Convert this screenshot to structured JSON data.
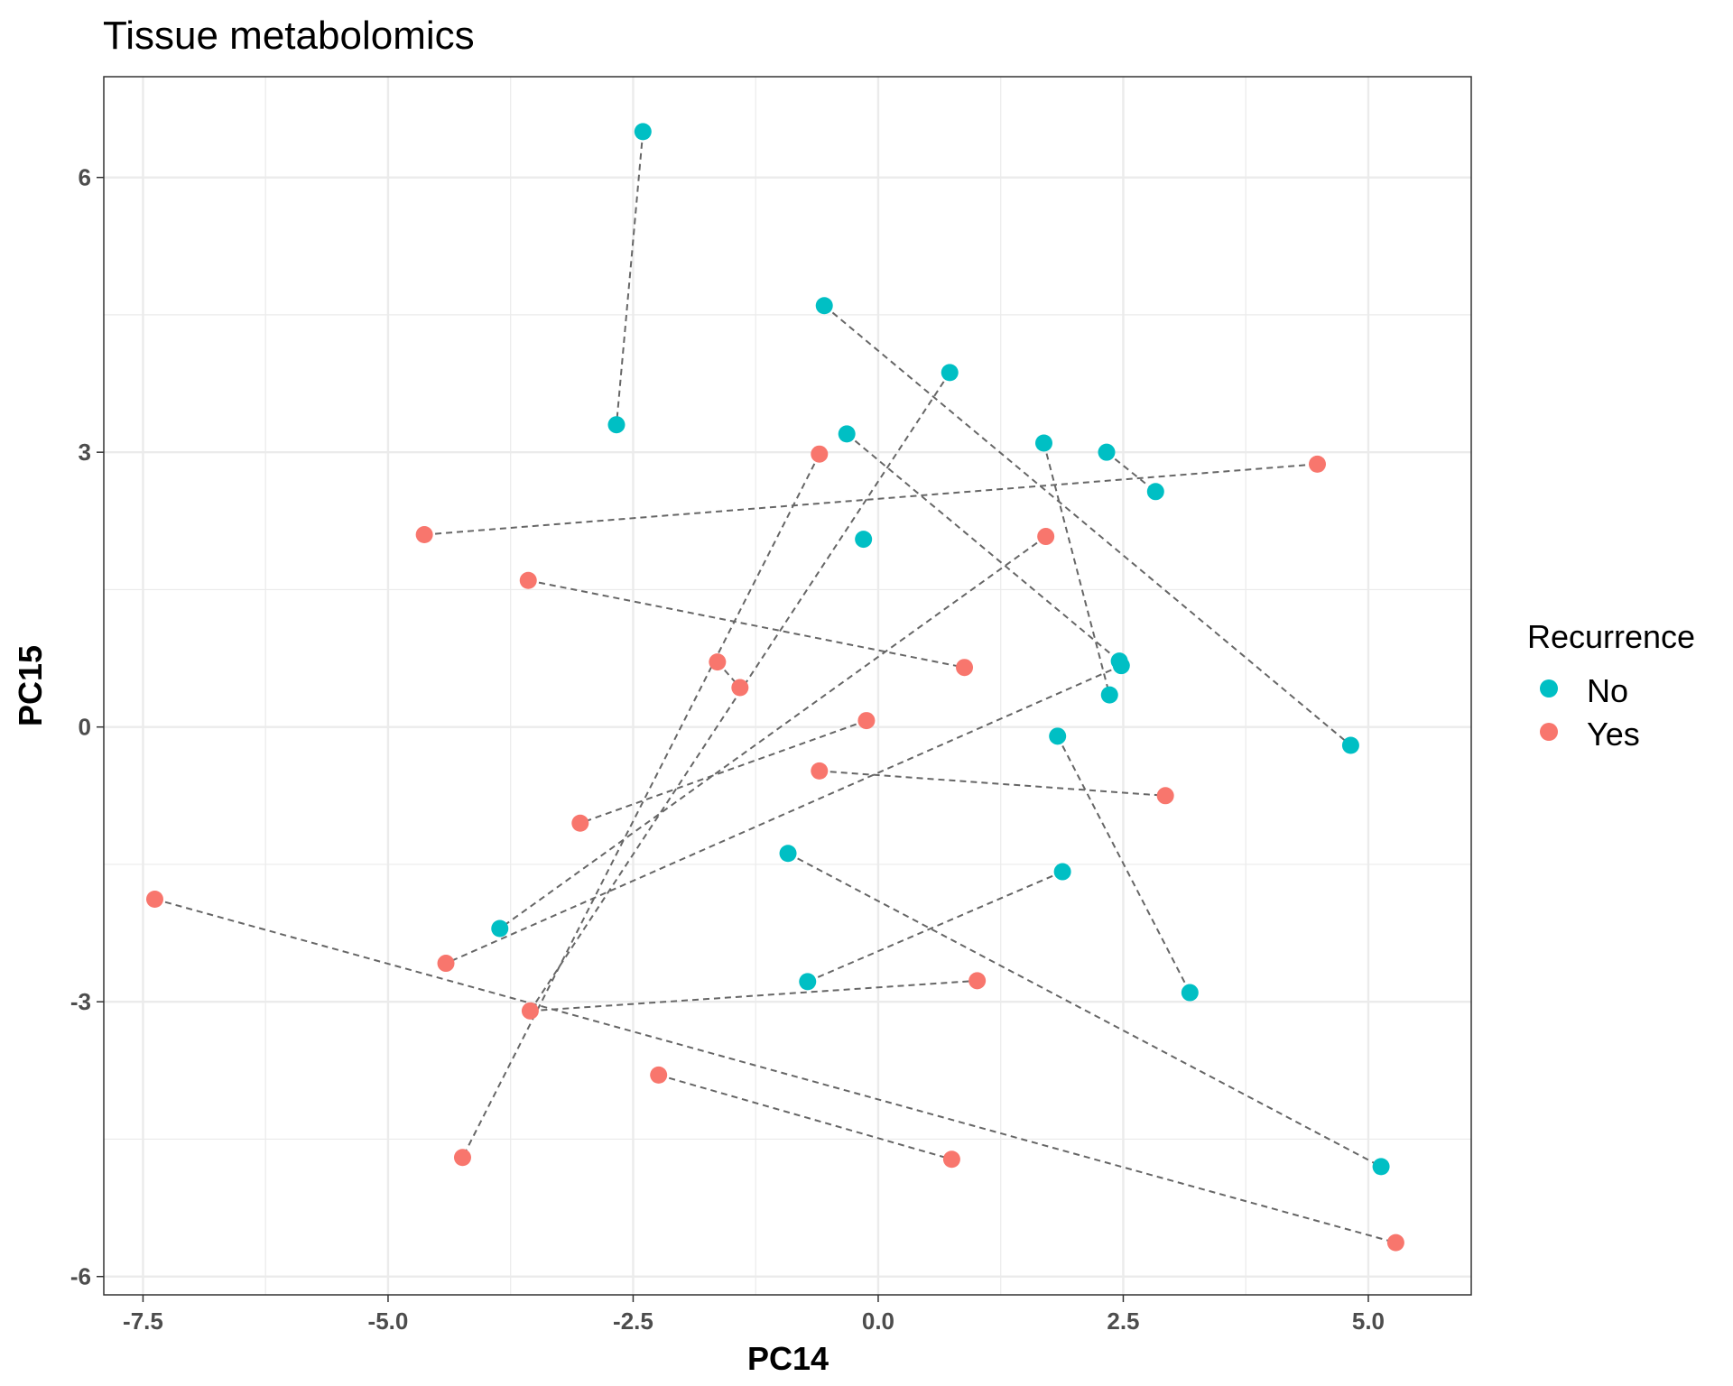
{
  "chart_data": {
    "type": "scatter",
    "title": "Tissue metabolomics",
    "xlabel": "PC14",
    "ylabel": "PC15",
    "xlim": [
      -7.9,
      6.05
    ],
    "ylim": [
      -6.2,
      7.1
    ],
    "x_ticks": [
      -7.5,
      -5.0,
      -2.5,
      0.0,
      2.5,
      5.0
    ],
    "x_tick_labels": [
      "-7.5",
      "-5.0",
      "-2.5",
      "0.0",
      "2.5",
      "5.0"
    ],
    "y_ticks": [
      -6,
      -3,
      0,
      3,
      6
    ],
    "y_tick_labels": [
      "-6",
      "-3",
      "0",
      "3",
      "6"
    ],
    "grid": true,
    "legend": {
      "title": "Recurrence",
      "position": "right",
      "entries": [
        {
          "name": "No",
          "color": "#00BFC4"
        },
        {
          "name": "Yes",
          "color": "#F8766D"
        }
      ]
    },
    "series": [
      {
        "name": "No",
        "color": "#00BFC4",
        "points": [
          [
            -2.4,
            6.5
          ],
          [
            -2.67,
            3.3
          ],
          [
            -0.55,
            4.6
          ],
          [
            0.73,
            3.87
          ],
          [
            -0.32,
            3.2
          ],
          [
            -0.15,
            2.05
          ],
          [
            1.69,
            3.1
          ],
          [
            2.33,
            3.0
          ],
          [
            2.83,
            2.57
          ],
          [
            2.46,
            0.72
          ],
          [
            2.48,
            0.67
          ],
          [
            2.36,
            0.35
          ],
          [
            1.83,
            -0.1
          ],
          [
            4.82,
            -0.2
          ],
          [
            -0.92,
            -1.38
          ],
          [
            1.88,
            -1.58
          ],
          [
            -3.86,
            -2.2
          ],
          [
            -0.72,
            -2.78
          ],
          [
            3.18,
            -2.9
          ],
          [
            5.13,
            -4.8
          ]
        ]
      },
      {
        "name": "Yes",
        "color": "#F8766D",
        "points": [
          [
            -0.6,
            2.98
          ],
          [
            4.48,
            2.87
          ],
          [
            -4.63,
            2.1
          ],
          [
            1.71,
            2.08
          ],
          [
            -3.57,
            1.6
          ],
          [
            -1.64,
            0.71
          ],
          [
            0.88,
            0.65
          ],
          [
            -1.41,
            0.43
          ],
          [
            -0.12,
            0.07
          ],
          [
            -0.6,
            -0.48
          ],
          [
            2.93,
            -0.75
          ],
          [
            -3.04,
            -1.05
          ],
          [
            -7.38,
            -1.88
          ],
          [
            -4.41,
            -2.58
          ],
          [
            1.01,
            -2.77
          ],
          [
            -3.55,
            -3.1
          ],
          [
            -2.24,
            -3.8
          ],
          [
            0.75,
            -4.72
          ],
          [
            -4.24,
            -4.7
          ],
          [
            5.28,
            -5.63
          ]
        ]
      }
    ],
    "pairs": [
      [
        [
          -2.4,
          6.5
        ],
        [
          -2.67,
          3.3
        ]
      ],
      [
        [
          -0.55,
          4.6
        ],
        [
          4.82,
          -0.2
        ]
      ],
      [
        [
          0.73,
          3.87
        ],
        [
          -3.55,
          -3.1
        ]
      ],
      [
        [
          -0.6,
          2.98
        ],
        [
          -4.24,
          -4.7
        ]
      ],
      [
        [
          -0.32,
          3.2
        ],
        [
          2.46,
          0.72
        ]
      ],
      [
        [
          1.69,
          3.1
        ],
        [
          2.36,
          0.35
        ]
      ],
      [
        [
          2.33,
          3.0
        ],
        [
          2.83,
          2.57
        ]
      ],
      [
        [
          -4.63,
          2.1
        ],
        [
          4.48,
          2.87
        ]
      ],
      [
        [
          1.71,
          2.08
        ],
        [
          -3.86,
          -2.2
        ]
      ],
      [
        [
          -3.57,
          1.6
        ],
        [
          0.88,
          0.65
        ]
      ],
      [
        [
          -1.64,
          0.71
        ],
        [
          -1.41,
          0.43
        ]
      ],
      [
        [
          2.48,
          0.67
        ],
        [
          -4.41,
          -2.58
        ]
      ],
      [
        [
          -0.12,
          0.07
        ],
        [
          -3.04,
          -1.05
        ]
      ],
      [
        [
          -0.6,
          -0.48
        ],
        [
          2.93,
          -0.75
        ]
      ],
      [
        [
          1.83,
          -0.1
        ],
        [
          3.18,
          -2.9
        ]
      ],
      [
        [
          -0.92,
          -1.38
        ],
        [
          5.13,
          -4.8
        ]
      ],
      [
        [
          1.88,
          -1.58
        ],
        [
          -0.72,
          -2.78
        ]
      ],
      [
        [
          -7.38,
          -1.88
        ],
        [
          5.28,
          -5.63
        ]
      ],
      [
        [
          -3.55,
          -3.1
        ],
        [
          1.01,
          -2.77
        ]
      ],
      [
        [
          -2.24,
          -3.8
        ],
        [
          0.75,
          -4.72
        ]
      ]
    ],
    "pair_line_color": "#666666",
    "grid_color": "#ebebeb",
    "panel_border_color": "#333333"
  }
}
